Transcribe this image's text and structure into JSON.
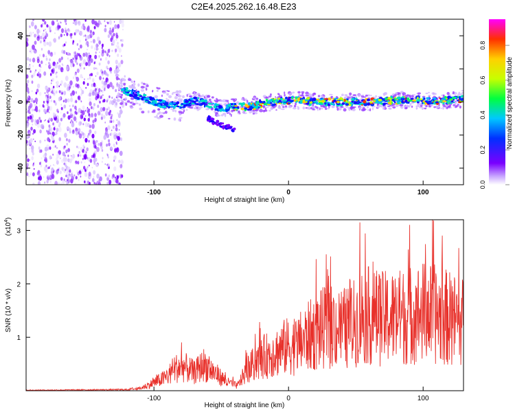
{
  "title": "C2E4.2025.262.16.48.E23",
  "colors": {
    "snr_line": "#e8312b",
    "track": "#7a00ff",
    "background": "#ffffff"
  },
  "colorbar": {
    "label": "Normalized spectral amplitude",
    "ticks": [
      "0.0",
      "0.2",
      "0.4",
      "0.6",
      "0.8"
    ],
    "range": [
      0,
      0.95
    ]
  },
  "chart_data": [
    {
      "type": "heatmap",
      "title": "C2E4.2025.262.16.48.E23",
      "xlabel": "Height of straight line (km)",
      "ylabel": "Frequency (Hz)",
      "xlim": [
        -195,
        130
      ],
      "ylim": [
        -50,
        50
      ],
      "xticks": [
        "-100",
        "0",
        "100"
      ],
      "yticks": [
        "40",
        "20",
        "0",
        "-20",
        "-40"
      ],
      "track": {
        "x": [
          -128,
          -115,
          -100,
          -90,
          -80,
          -70,
          -60,
          -50,
          -40,
          -30,
          -20,
          -10,
          0,
          10,
          20,
          40,
          60,
          80,
          100,
          120,
          130
        ],
        "y": [
          8,
          5,
          0,
          -2,
          -2,
          1,
          -1,
          -4,
          -3,
          -3,
          -1,
          0,
          1,
          1,
          0,
          0,
          0,
          1,
          1,
          1,
          2
        ]
      },
      "branch": {
        "x": [
          -60,
          -55,
          -50,
          -45,
          -40
        ],
        "y": [
          -10,
          -12,
          -14,
          -15,
          -17
        ]
      }
    },
    {
      "type": "line",
      "xlabel": "Height of straight line (km)",
      "ylabel": "SNR (10 * v/v)",
      "scale_label": "(x10",
      "scale_exp": "4",
      "xlim": [
        -195,
        130
      ],
      "ylim": [
        0,
        3.2
      ],
      "xticks": [
        "-100",
        "0",
        "100"
      ],
      "yticks": [
        "3",
        "2",
        "1"
      ],
      "envelope": {
        "x": [
          -195,
          -120,
          -110,
          -100,
          -90,
          -85,
          -78,
          -70,
          -63,
          -55,
          -45,
          -38,
          -32,
          -25,
          -18,
          -10,
          -2,
          5,
          15,
          25,
          35,
          45,
          55,
          70,
          85,
          100,
          115,
          130
        ],
        "y": [
          0.01,
          0.02,
          0.06,
          0.2,
          0.35,
          0.55,
          0.6,
          0.45,
          0.65,
          0.45,
          0.2,
          0.12,
          0.45,
          0.7,
          0.85,
          0.95,
          1.1,
          1.1,
          1.35,
          1.55,
          1.6,
          1.55,
          1.9,
          1.8,
          1.85,
          1.95,
          1.85,
          1.7
        ]
      },
      "peak": {
        "x": 53,
        "y": 3.15
      }
    }
  ]
}
